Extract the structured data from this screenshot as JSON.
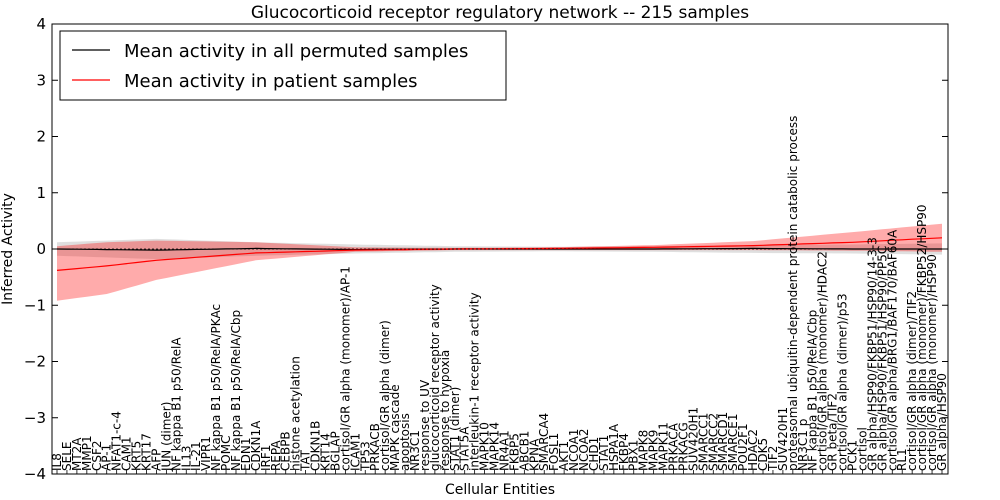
{
  "chart_data": {
    "type": "line",
    "title": "Glucocorticoid receptor regulatory network -- 215 samples",
    "xlabel": "Cellular Entities",
    "ylabel": "Inferred Activity",
    "ylim": [
      -4,
      4
    ],
    "yticks": [
      -4,
      -3,
      -2,
      -1,
      0,
      1,
      2,
      3,
      4
    ],
    "ytick_labels": [
      "−4",
      "−3",
      "−2",
      "−1",
      "0",
      "1",
      "2",
      "3",
      "4"
    ],
    "legend": {
      "position": "top-left",
      "entries": [
        {
          "label": "Mean activity in all permuted samples",
          "color": "#000000"
        },
        {
          "label": "Mean activity in patient samples",
          "color": "#ff0000"
        }
      ]
    },
    "categories": [
      "IL8",
      "SELE",
      "MT2A",
      "MMP1",
      "CSF2",
      "AP-1",
      "NFAT1-c-4",
      "CAM1",
      "KRT5",
      "KRT17",
      "AFP",
      "JUN (dimer)",
      "NF kappa B1 p50/RelA",
      "IL13",
      "IL-21",
      "VIPR1",
      "NF kappa B1 p50/RelA/PKAc",
      "POMC",
      "NF kappa B1 p50/RelA/Cbp",
      "EDN1",
      "CDKN1A",
      "IRF1",
      "REPA",
      "CEBPB",
      "histone acetylation",
      "TAT",
      "CDKN1B",
      "KRT14",
      "BGLAP",
      "cortisol/GR alpha (monomer)/AP-1",
      "ICAM1",
      "TP53",
      "PRKACB",
      "cortisol/GR alpha (dimer)",
      "MAPK cascade",
      "apoptosis",
      "NR3C1",
      "response to UV",
      "glucocorticoid receptor activity",
      "response to hypoxia",
      "STAT1 (dimer)",
      "STAT5A",
      "interleukin-1 receptor activity",
      "MAPK10",
      "MAPK14",
      "NR4A1",
      "FKBP5",
      "ABCB1",
      "KPNA",
      "SMARCA4",
      "FOSL1",
      "AKT1",
      "NCOA1",
      "NCOA2",
      "CHD1",
      "STAT1",
      "HSPA1A",
      "FKBP4",
      "PBX1",
      "MAPK8",
      "MAPK9",
      "MAPK11",
      "PRKACA",
      "PRKACG",
      "SUV420H1",
      "SMARCC1",
      "SMARCC2",
      "SMARCD1",
      "SMARCE1",
      "POU2F1",
      "HDAC2",
      "CDK5",
      "TIF2",
      "SUV420H1",
      "proteasomal ubiquitin-dependent protein catabolic process",
      "NR3C1 p",
      "NF kappa B1 p50/RelA/Cbp",
      "cortisol/GR alpha (monomer)/HDAC2",
      "GR beta/TIF2",
      "cortisol/GR alpha (dimer)/p53",
      "PCK1",
      "cortisol",
      "GR alpha/HSP90/FKBP51/HSP90/14-3-3",
      "GR alpha/HSP90/FKBP51/HSP90/PP5C",
      "cortisol/GR alpha/BRG1/BAF170/BAF60A",
      "RL1",
      "cortisol/GR alpha (dimer)/TIF2",
      "cortisol/GR alpha (monomer)/FKBP52/HSP90",
      "cortisol/GR alpha (monomer)/HSP90",
      "GR alpha/HSP90"
    ],
    "series": [
      {
        "name": "Mean activity in patient samples",
        "color": "#ff0000",
        "x": [
          0,
          5,
          10,
          20,
          30,
          40,
          50,
          60,
          70,
          80,
          89
        ],
        "values": [
          -0.38,
          -0.3,
          -0.2,
          -0.07,
          -0.02,
          0.0,
          0.01,
          0.03,
          0.06,
          0.12,
          0.2
        ],
        "lower": [
          -0.92,
          -0.8,
          -0.55,
          -0.2,
          -0.05,
          -0.02,
          -0.02,
          -0.02,
          -0.02,
          -0.03,
          -0.05
        ],
        "upper": [
          0.05,
          0.12,
          0.15,
          0.12,
          0.03,
          0.02,
          0.03,
          0.07,
          0.14,
          0.3,
          0.45
        ]
      },
      {
        "name": "Mean activity in all permuted samples",
        "color": "#000000",
        "x": [
          0,
          10,
          20,
          30,
          40,
          50,
          60,
          70,
          80,
          89
        ],
        "values": [
          0.0,
          -0.02,
          0.01,
          -0.01,
          0.0,
          0.0,
          0.0,
          0.01,
          0.0,
          0.0
        ],
        "lower": [
          -0.12,
          -0.18,
          -0.12,
          -0.08,
          -0.05,
          -0.04,
          -0.05,
          -0.07,
          -0.08,
          -0.1
        ],
        "upper": [
          0.12,
          0.18,
          0.12,
          0.08,
          0.05,
          0.04,
          0.05,
          0.07,
          0.08,
          0.1
        ]
      }
    ]
  }
}
